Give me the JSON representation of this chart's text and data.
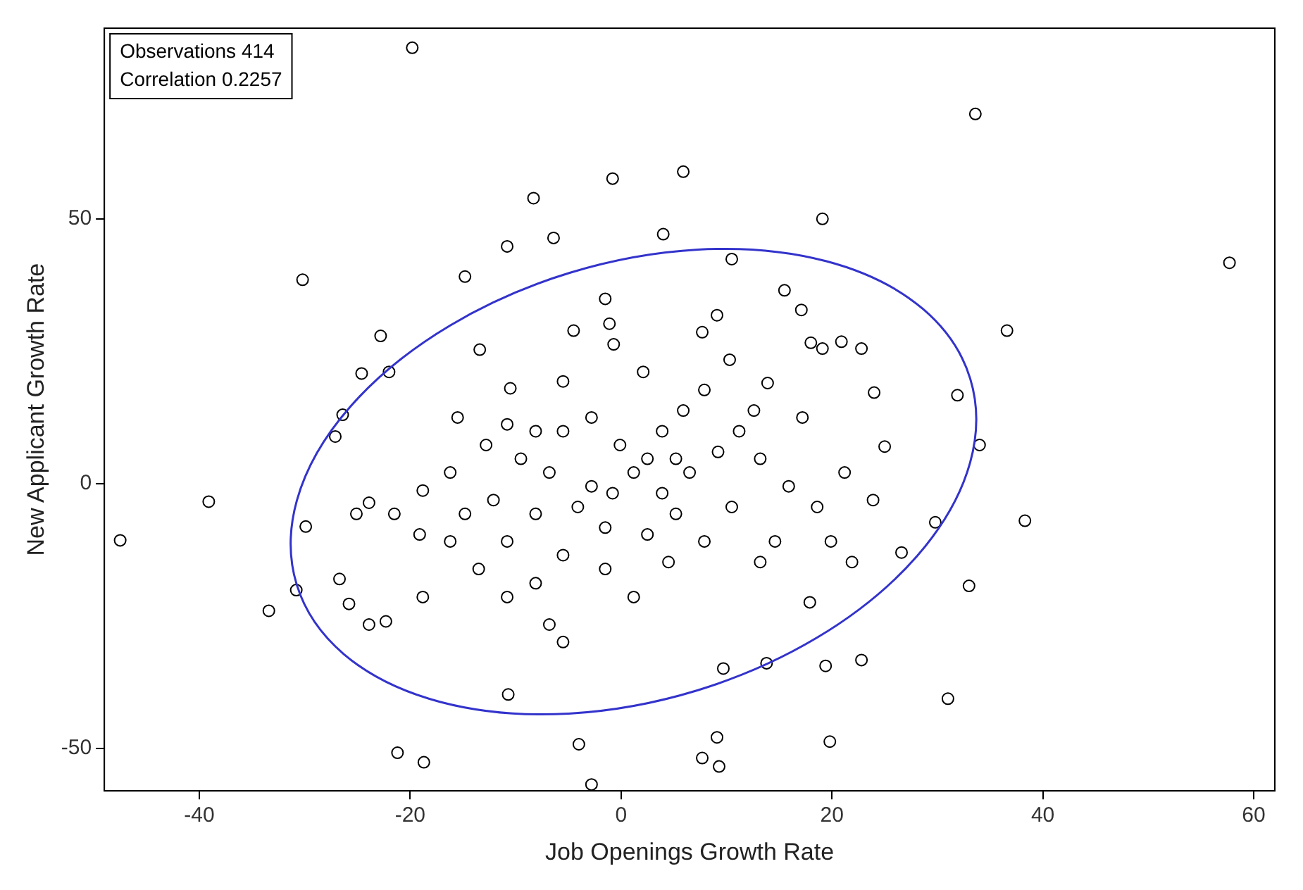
{
  "chart_data": {
    "type": "scatter",
    "xlabel": "Job Openings Growth Rate",
    "ylabel": "New Applicant Growth Rate",
    "annotations": [
      "Observations 414",
      "Correlation 0.2257"
    ],
    "xlim": [
      -49,
      62
    ],
    "xticks": [
      -40,
      -20,
      0,
      20,
      40,
      60
    ],
    "ylim": [
      -58,
      86
    ],
    "yticks": [
      -50,
      0,
      50
    ],
    "grid": false,
    "legend": false,
    "marker": "circle",
    "series": [
      {
        "color": "#000000",
        "x": [
          -19.8,
          33.6,
          57.7,
          -47.5,
          -39.1,
          -30.2,
          -0.8,
          5.9,
          -8.3,
          -6.4,
          -10.8,
          -14.8,
          4.0,
          19.1,
          10.5,
          36.6,
          -22.8,
          -24.6,
          -22.0,
          -26.4,
          -27.1,
          -13.4,
          -10.5,
          -29.9,
          -30.8,
          -33.4,
          -26.7,
          -25.8,
          -23.9,
          -22.3,
          -21.2,
          -18.7,
          -2.8,
          -4.0,
          9.1,
          9.3,
          7.7,
          19.8,
          -10.7,
          9.7,
          13.8,
          19.4,
          22.8,
          31,
          33,
          29.8,
          38.3,
          31.9,
          34,
          26.6,
          17.9,
          19.1,
          20.9,
          22.8,
          24.0,
          25,
          15.5,
          17.1,
          18,
          10.3,
          9.1,
          7.7,
          -1.5,
          -1.1,
          -4.5,
          -0.7,
          -5.5,
          2.1,
          5.9,
          3.9,
          2.5,
          1.2,
          -0.8,
          -2.8,
          -4.1,
          -6.8,
          -8.1,
          -9.5,
          -12.1,
          -14.8,
          -16.2,
          -13.5,
          -10.8,
          -8.1,
          -5.5,
          -1.5,
          2.5,
          5.2,
          6.5,
          9.2,
          11.2,
          13.2,
          15.9,
          18.6,
          21.2,
          23.9,
          14.6,
          17.2,
          12.6,
          7.9,
          4.5,
          1.2,
          -6.8,
          -5.5,
          -18.8,
          -19.1,
          -21.5,
          -23.9,
          -25.1,
          -18.8,
          -16.2,
          -12.8,
          -15.5,
          -10.8,
          -5.5,
          -2.8,
          -0.1,
          5.2,
          -1.5,
          -8.1,
          -10.8,
          10.5,
          7.9,
          13.2,
          19.9,
          21.9,
          13.9,
          3.9
        ],
        "values": [
          82.3,
          69.8,
          41.7,
          -10.7,
          -3.4,
          38.5,
          57.6,
          58.9,
          53.9,
          46.4,
          44.8,
          39.1,
          47.1,
          50,
          42.4,
          28.9,
          27.9,
          20.8,
          21.1,
          13,
          8.9,
          25.3,
          18,
          -8.1,
          -20.1,
          -24,
          -18,
          -22.7,
          -26.6,
          -26,
          -50.8,
          -52.6,
          -56.8,
          -49.2,
          -47.9,
          -53.4,
          -51.8,
          -48.7,
          -39.8,
          -34.9,
          -33.9,
          -34.4,
          -33.3,
          -40.6,
          -19.3,
          -7.3,
          -7.0,
          16.7,
          7.3,
          -13,
          -22.4,
          25.5,
          26.8,
          25.5,
          17.2,
          7,
          36.5,
          32.8,
          26.6,
          23.4,
          31.8,
          28.6,
          34.9,
          30.2,
          28.9,
          26.3,
          19.3,
          21.1,
          13.8,
          9.9,
          4.7,
          2.1,
          -1.8,
          -0.5,
          -4.4,
          2.1,
          9.9,
          4.7,
          -3.1,
          -5.7,
          -10.9,
          -16.1,
          -21.4,
          -18.8,
          -13.5,
          -16.1,
          -9.6,
          -5.7,
          2.1,
          6,
          9.9,
          4.7,
          -0.5,
          -4.4,
          2.1,
          -3.1,
          -10.9,
          12.5,
          13.8,
          17.7,
          -14.8,
          -21.4,
          -26.6,
          -29.9,
          -21.4,
          -9.6,
          -5.7,
          -3.6,
          -5.7,
          -1.3,
          2.1,
          7.3,
          12.5,
          11.2,
          9.9,
          12.5,
          7.3,
          4.7,
          -8.3,
          -5.7,
          -10.9,
          -4.4,
          -10.9,
          -14.8,
          -10.9,
          -14.8,
          19,
          -1.8
        ]
      }
    ]
  }
}
